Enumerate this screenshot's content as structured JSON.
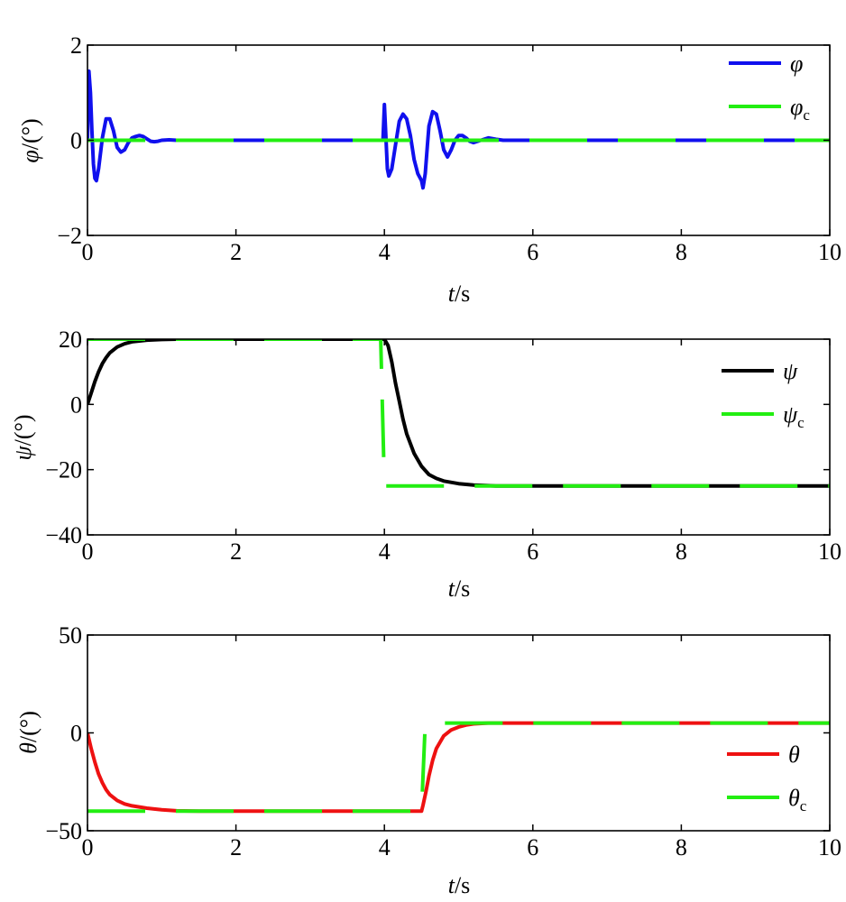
{
  "colors": {
    "phi": "#1010ee",
    "psi": "#000000",
    "theta": "#ee1111",
    "command": "#22ee11"
  },
  "chart_data": [
    {
      "type": "line",
      "xlabel_var": "t",
      "xlabel_unit": "/s",
      "ylabel_var": "φ",
      "ylabel_unit": "/(°)",
      "xlim": [
        0,
        10
      ],
      "ylim": [
        -2,
        2
      ],
      "xticks": [
        0,
        2,
        4,
        6,
        8,
        10
      ],
      "yticks": [
        -2,
        0,
        2
      ],
      "xtick_labels": [
        "0",
        "2",
        "4",
        "6",
        "8",
        "10"
      ],
      "ytick_labels": [
        "−2",
        "0",
        "2"
      ],
      "legend_position": "top-right",
      "series": [
        {
          "name": "φ",
          "color_key": "phi",
          "style": "solid",
          "x": [
            0,
            0.02,
            0.04,
            0.06,
            0.08,
            0.1,
            0.12,
            0.15,
            0.2,
            0.25,
            0.3,
            0.35,
            0.4,
            0.45,
            0.5,
            0.55,
            0.6,
            0.65,
            0.7,
            0.75,
            0.8,
            0.85,
            0.9,
            0.95,
            1.0,
            1.1,
            1.2,
            3.98,
            4.0,
            4.02,
            4.04,
            4.06,
            4.1,
            4.15,
            4.2,
            4.25,
            4.3,
            4.35,
            4.4,
            4.45,
            4.5,
            4.52,
            4.55,
            4.58,
            4.6,
            4.65,
            4.7,
            4.75,
            4.8,
            4.85,
            4.9,
            4.95,
            5.0,
            5.05,
            5.1,
            5.15,
            5.2,
            5.3,
            5.4,
            5.5,
            5.6,
            5.7,
            6.0,
            10
          ],
          "y": [
            0,
            1.45,
            1.0,
            0.2,
            -0.5,
            -0.8,
            -0.85,
            -0.6,
            0.05,
            0.45,
            0.45,
            0.2,
            -0.15,
            -0.25,
            -0.2,
            -0.05,
            0.05,
            0.08,
            0.1,
            0.08,
            0.03,
            -0.02,
            -0.03,
            -0.02,
            0,
            0.01,
            0,
            0,
            0.75,
            0.1,
            -0.6,
            -0.75,
            -0.6,
            -0.1,
            0.4,
            0.55,
            0.45,
            0.1,
            -0.4,
            -0.7,
            -0.85,
            -1.0,
            -0.7,
            -0.1,
            0.3,
            0.6,
            0.55,
            0.2,
            -0.2,
            -0.35,
            -0.2,
            0.0,
            0.1,
            0.1,
            0.05,
            -0.02,
            -0.05,
            0.0,
            0.05,
            0.02,
            0.0,
            0.0,
            0.0,
            0.0
          ]
        },
        {
          "name": "φc",
          "color_key": "command",
          "style": "dashed",
          "x": [
            0,
            10
          ],
          "y": [
            0,
            0
          ]
        }
      ]
    },
    {
      "type": "line",
      "xlabel_var": "t",
      "xlabel_unit": "/s",
      "ylabel_var": "ψ",
      "ylabel_unit": "/(°)",
      "xlim": [
        0,
        10
      ],
      "ylim": [
        -40,
        20
      ],
      "xticks": [
        0,
        2,
        4,
        6,
        8,
        10
      ],
      "yticks": [
        -40,
        -20,
        0,
        20
      ],
      "xtick_labels": [
        "0",
        "2",
        "4",
        "6",
        "8",
        "10"
      ],
      "ytick_labels": [
        "−40",
        "−20",
        "0",
        "20"
      ],
      "legend_position": "center-right",
      "series": [
        {
          "name": "ψ",
          "color_key": "psi",
          "style": "solid",
          "x": [
            0,
            0.05,
            0.1,
            0.15,
            0.2,
            0.25,
            0.3,
            0.4,
            0.5,
            0.6,
            0.8,
            1.0,
            1.2,
            1.5,
            2,
            3,
            4.0,
            4.05,
            4.1,
            4.15,
            4.2,
            4.25,
            4.3,
            4.4,
            4.5,
            4.6,
            4.7,
            4.8,
            5.0,
            5.2,
            5.5,
            6,
            10
          ],
          "y": [
            0,
            3.5,
            7,
            10,
            12.5,
            14.3,
            15.8,
            17.6,
            18.6,
            19.2,
            19.7,
            19.9,
            20,
            20,
            20,
            20,
            20,
            18,
            13,
            6.5,
            1,
            -4.5,
            -9,
            -15,
            -19,
            -21.5,
            -22.7,
            -23.5,
            -24.3,
            -24.7,
            -25,
            -25,
            -25
          ]
        },
        {
          "name": "ψc",
          "color_key": "command",
          "style": "dashed",
          "x": [
            0,
            3.9,
            3.95,
            4.0,
            4.1,
            10
          ],
          "y": [
            20,
            20,
            20,
            -25,
            -25,
            -25
          ]
        }
      ]
    },
    {
      "type": "line",
      "xlabel_var": "t",
      "xlabel_unit": "/s",
      "ylabel_var": "θ",
      "ylabel_unit": "/(°)",
      "xlim": [
        0,
        10
      ],
      "ylim": [
        -50,
        50
      ],
      "xticks": [
        0,
        2,
        4,
        6,
        8,
        10
      ],
      "yticks": [
        -50,
        0,
        50
      ],
      "xtick_labels": [
        "0",
        "2",
        "4",
        "6",
        "8",
        "10"
      ],
      "ytick_labels": [
        "−50",
        "0",
        "50"
      ],
      "legend_position": "bottom-right",
      "series": [
        {
          "name": "θ",
          "color_key": "theta",
          "style": "solid",
          "x": [
            0,
            0.05,
            0.1,
            0.15,
            0.2,
            0.25,
            0.3,
            0.4,
            0.5,
            0.6,
            0.8,
            1.0,
            1.2,
            1.5,
            2,
            3,
            4.4,
            4.5,
            4.52,
            4.56,
            4.6,
            4.65,
            4.7,
            4.8,
            4.9,
            5.0,
            5.1,
            5.2,
            5.4,
            5.6,
            5.8,
            6,
            10
          ],
          "y": [
            0,
            -8,
            -15,
            -21,
            -25.5,
            -29,
            -31.5,
            -34.5,
            -36.3,
            -37.3,
            -38.5,
            -39.3,
            -39.8,
            -40,
            -40,
            -40,
            -40,
            -40,
            -37,
            -30,
            -22,
            -14,
            -8,
            -1.5,
            1.5,
            3,
            4,
            4.6,
            5,
            5,
            5,
            5,
            5
          ]
        },
        {
          "name": "θc",
          "color_key": "command",
          "style": "dashed",
          "x": [
            0,
            4.45,
            4.5,
            4.55,
            4.65,
            10
          ],
          "y": [
            -40,
            -40,
            -40,
            5,
            5,
            5
          ]
        }
      ]
    }
  ]
}
